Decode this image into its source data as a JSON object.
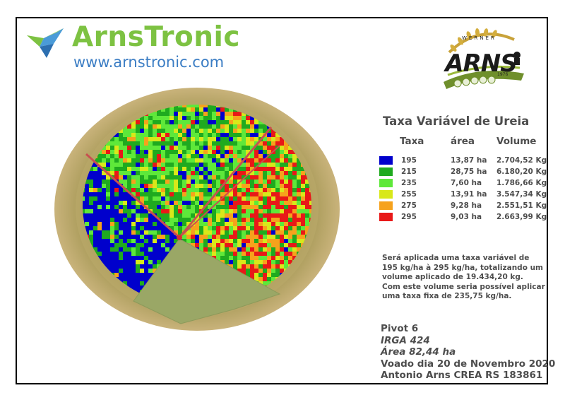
{
  "brand": {
    "name": "ArnsTronic",
    "url": "www.arnstronic.com",
    "colors": {
      "name": "#7dc242",
      "url": "#3b7dc4"
    }
  },
  "partner_logo": {
    "word": "ARNS",
    "top_text": "WERNER",
    "year": "1976"
  },
  "legend": {
    "title": "Taxa Variável de Ureia",
    "headers": {
      "rate": "Taxa",
      "area": "área",
      "volume": "Volume"
    },
    "rows": [
      {
        "rate": "195",
        "area": "13,87 ha",
        "volume": "2.704,52 Kg",
        "color": "#0000cc"
      },
      {
        "rate": "215",
        "area": "28,75 ha",
        "volume": "6.180,20 Kg",
        "color": "#1faa1f"
      },
      {
        "rate": "235",
        "area": "7,60 ha",
        "volume": "1.786,66 Kg",
        "color": "#5ee83a"
      },
      {
        "rate": "255",
        "area": "13,91 ha",
        "volume": "3.547,34 Kg",
        "color": "#d8e81a"
      },
      {
        "rate": "275",
        "area": "9,28 ha",
        "volume": "2.551,51 Kg",
        "color": "#f6a21c"
      },
      {
        "rate": "295",
        "area": "9,03 ha",
        "volume": "2.663,99 Kg",
        "color": "#e81818"
      }
    ]
  },
  "note_lines": [
    "Será aplicada uma taxa variável de",
    "195 kg/ha à 295 kg/ha, totalizando um",
    "volume aplicado de 19.434,20 kg.",
    "Com este volume seria possível aplicar",
    "uma taxa fixa de 235,75 kg/ha."
  ],
  "info": {
    "pivot": "Pivot 6",
    "variety": "IRGA 424",
    "area": "Área 82,44 ha",
    "flown": "Voado dia 20 de Novembro 2020",
    "author": "Antonio Arns CREA RS 183861"
  }
}
